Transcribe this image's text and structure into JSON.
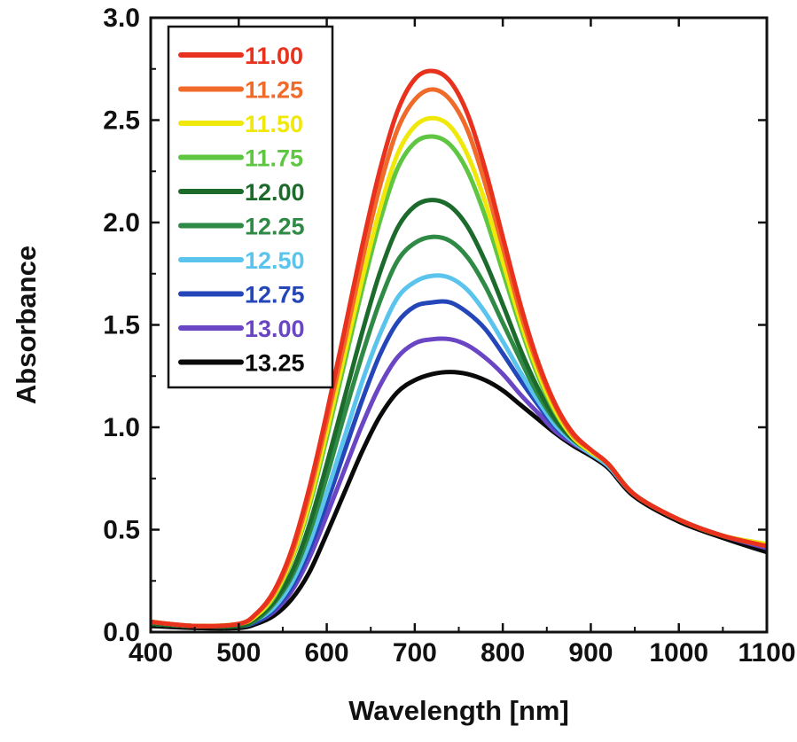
{
  "chart_data": {
    "type": "line",
    "xlabel": "Wavelength [nm]",
    "ylabel": "Absorbance",
    "xlim": [
      400,
      1100
    ],
    "ylim": [
      0.0,
      3.0
    ],
    "x_ticks": [
      "400",
      "500",
      "600",
      "700",
      "800",
      "900",
      "1000",
      "1100"
    ],
    "y_ticks": [
      "0.0",
      "0.5",
      "1.0",
      "1.5",
      "2.0",
      "2.5",
      "3.0"
    ],
    "legend_position": "top-left",
    "grid": false,
    "x": [
      400,
      450,
      500,
      520,
      540,
      560,
      580,
      600,
      620,
      640,
      660,
      680,
      700,
      720,
      740,
      760,
      780,
      800,
      820,
      840,
      860,
      880,
      900,
      920,
      950,
      1000,
      1050,
      1100
    ],
    "series": [
      {
        "name": "11.00",
        "color": "#e8321e",
        "values": [
          0.05,
          0.03,
          0.04,
          0.09,
          0.2,
          0.4,
          0.7,
          1.07,
          1.47,
          1.88,
          2.25,
          2.54,
          2.7,
          2.74,
          2.69,
          2.53,
          2.26,
          1.93,
          1.6,
          1.32,
          1.11,
          0.97,
          0.89,
          0.82,
          0.67,
          0.55,
          0.47,
          0.42
        ]
      },
      {
        "name": "11.25",
        "color": "#f06a2a",
        "values": [
          0.05,
          0.03,
          0.04,
          0.09,
          0.19,
          0.38,
          0.67,
          1.03,
          1.41,
          1.81,
          2.17,
          2.45,
          2.6,
          2.65,
          2.6,
          2.45,
          2.19,
          1.88,
          1.56,
          1.3,
          1.1,
          0.96,
          0.89,
          0.82,
          0.67,
          0.55,
          0.47,
          0.42
        ]
      },
      {
        "name": "11.50",
        "color": "#f0e80a",
        "values": [
          0.05,
          0.03,
          0.04,
          0.08,
          0.18,
          0.36,
          0.63,
          0.98,
          1.35,
          1.72,
          2.06,
          2.33,
          2.47,
          2.51,
          2.47,
          2.33,
          2.1,
          1.81,
          1.52,
          1.27,
          1.08,
          0.95,
          0.88,
          0.82,
          0.67,
          0.55,
          0.47,
          0.43
        ]
      },
      {
        "name": "11.75",
        "color": "#5ec641",
        "values": [
          0.05,
          0.03,
          0.04,
          0.08,
          0.17,
          0.35,
          0.61,
          0.95,
          1.31,
          1.67,
          2.0,
          2.26,
          2.39,
          2.42,
          2.38,
          2.25,
          2.03,
          1.76,
          1.49,
          1.25,
          1.07,
          0.95,
          0.88,
          0.82,
          0.67,
          0.55,
          0.47,
          0.43
        ]
      },
      {
        "name": "12.00",
        "color": "#1c6b2c",
        "values": [
          0.04,
          0.03,
          0.03,
          0.07,
          0.15,
          0.29,
          0.52,
          0.82,
          1.14,
          1.46,
          1.75,
          1.97,
          2.08,
          2.11,
          2.08,
          1.98,
          1.81,
          1.6,
          1.38,
          1.19,
          1.04,
          0.94,
          0.88,
          0.82,
          0.67,
          0.55,
          0.47,
          0.42
        ]
      },
      {
        "name": "12.25",
        "color": "#2f8a45",
        "values": [
          0.04,
          0.03,
          0.03,
          0.06,
          0.14,
          0.27,
          0.48,
          0.76,
          1.06,
          1.35,
          1.61,
          1.81,
          1.9,
          1.93,
          1.91,
          1.83,
          1.69,
          1.51,
          1.33,
          1.16,
          1.03,
          0.94,
          0.88,
          0.82,
          0.67,
          0.55,
          0.47,
          0.42
        ]
      },
      {
        "name": "12.50",
        "color": "#5ac4ec",
        "values": [
          0.04,
          0.03,
          0.03,
          0.06,
          0.12,
          0.24,
          0.43,
          0.68,
          0.95,
          1.22,
          1.45,
          1.63,
          1.71,
          1.74,
          1.73,
          1.67,
          1.56,
          1.42,
          1.27,
          1.13,
          1.01,
          0.93,
          0.87,
          0.81,
          0.67,
          0.55,
          0.47,
          0.42
        ]
      },
      {
        "name": "12.75",
        "color": "#2446b8",
        "values": [
          0.04,
          0.03,
          0.03,
          0.05,
          0.11,
          0.22,
          0.4,
          0.63,
          0.88,
          1.13,
          1.35,
          1.51,
          1.59,
          1.61,
          1.61,
          1.56,
          1.48,
          1.36,
          1.23,
          1.11,
          1.0,
          0.93,
          0.87,
          0.81,
          0.67,
          0.55,
          0.47,
          0.42
        ]
      },
      {
        "name": "13.00",
        "color": "#6a45c4",
        "values": [
          0.04,
          0.03,
          0.03,
          0.05,
          0.1,
          0.2,
          0.36,
          0.57,
          0.79,
          1.01,
          1.2,
          1.34,
          1.41,
          1.43,
          1.43,
          1.4,
          1.34,
          1.26,
          1.16,
          1.07,
          0.98,
          0.92,
          0.87,
          0.81,
          0.67,
          0.55,
          0.47,
          0.41
        ]
      },
      {
        "name": "13.25",
        "color": "#0a0a0a",
        "values": [
          0.03,
          0.02,
          0.02,
          0.04,
          0.08,
          0.16,
          0.29,
          0.48,
          0.68,
          0.88,
          1.05,
          1.17,
          1.23,
          1.26,
          1.27,
          1.26,
          1.23,
          1.18,
          1.11,
          1.04,
          0.97,
          0.91,
          0.86,
          0.8,
          0.66,
          0.54,
          0.46,
          0.39
        ]
      }
    ]
  }
}
